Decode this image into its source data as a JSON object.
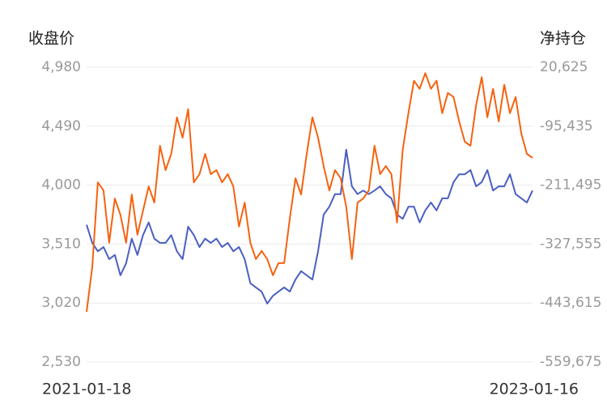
{
  "chart_data": {
    "type": "line",
    "ylabel": "收盘价",
    "y2label": "净持仓",
    "categories": [
      "2021-01-18",
      null,
      null,
      null,
      null,
      null,
      null,
      null,
      null,
      null,
      null,
      null,
      null,
      null,
      null,
      null,
      null,
      null,
      null,
      null,
      null,
      null,
      null,
      null,
      null,
      null,
      null,
      null,
      null,
      null,
      null,
      null,
      null,
      null,
      null,
      null,
      null,
      null,
      null,
      null,
      null,
      null,
      null,
      null,
      null,
      null,
      null,
      null,
      null,
      null,
      null,
      null,
      null,
      null,
      null,
      null,
      null,
      null,
      null,
      null,
      null,
      null,
      null,
      null,
      null,
      null,
      null,
      null,
      null,
      null,
      null,
      null,
      null,
      null,
      null,
      null,
      null,
      null,
      null,
      "2023-01-16"
    ],
    "ylim": [
      2530,
      4980
    ],
    "yticks": [
      {
        "value": 2530,
        "label": "2,530"
      },
      {
        "value": 3020,
        "label": "3,020"
      },
      {
        "value": 3510,
        "label": "3,510"
      },
      {
        "value": 4000,
        "label": "4,000"
      },
      {
        "value": 4490,
        "label": "4,490"
      },
      {
        "value": 4980,
        "label": "4,980"
      }
    ],
    "y2lim": [
      -559675,
      20625
    ],
    "y2ticks": [
      {
        "value": -559675,
        "label": "-559,675"
      },
      {
        "value": -443615,
        "label": "-443,615"
      },
      {
        "value": -327555,
        "label": "-327,555"
      },
      {
        "value": -211495,
        "label": "-211,495"
      },
      {
        "value": -95435,
        "label": "-95,435"
      },
      {
        "value": 20625,
        "label": "20,625"
      }
    ],
    "grid": true,
    "series": [
      {
        "color": "#4a5fc1",
        "values": [
          3670,
          3520,
          3450,
          3485,
          3385,
          3420,
          3250,
          3350,
          3555,
          3420,
          3585,
          3690,
          3555,
          3520,
          3520,
          3585,
          3450,
          3385,
          3655,
          3585,
          3485,
          3555,
          3520,
          3555,
          3485,
          3520,
          3450,
          3485,
          3385,
          3185,
          3150,
          3115,
          3015,
          3080,
          3115,
          3150,
          3115,
          3215,
          3285,
          3250,
          3215,
          3450,
          3755,
          3820,
          3925,
          3925,
          4295,
          3990,
          3925,
          3955,
          3925,
          3955,
          3990,
          3925,
          3890,
          3755,
          3720,
          3820,
          3820,
          3690,
          3790,
          3855,
          3790,
          3890,
          3890,
          4025,
          4090,
          4090,
          4125,
          3990,
          4025,
          4125,
          3955,
          3990,
          3990,
          4090,
          3925,
          3890,
          3855,
          3955
        ]
      },
      {
        "color": "#f5620f",
        "axis": "y2",
        "values": [
          -461000,
          -373000,
          -206000,
          -222000,
          -325000,
          -238000,
          -270000,
          -325000,
          -230000,
          -309000,
          -262000,
          -214000,
          -246000,
          -134000,
          -182000,
          -150000,
          -78000,
          -118000,
          -62000,
          -206000,
          -190000,
          -150000,
          -190000,
          -182000,
          -206000,
          -190000,
          -214000,
          -293000,
          -246000,
          -325000,
          -357000,
          -341000,
          -357000,
          -389000,
          -365000,
          -365000,
          -277000,
          -198000,
          -230000,
          -150000,
          -78000,
          -118000,
          -174000,
          -222000,
          -182000,
          -198000,
          -254000,
          -357000,
          -246000,
          -238000,
          -222000,
          -134000,
          -190000,
          -174000,
          -190000,
          -285000,
          -142000,
          -70000,
          -6000,
          -22000,
          9000,
          -22000,
          -6000,
          -70000,
          -30000,
          -38000,
          -86000,
          -126000,
          -134000,
          -54000,
          1000,
          -78000,
          -22000,
          -86000,
          -14000,
          -70000,
          -38000,
          -110000,
          -150000,
          -158000
        ]
      }
    ]
  }
}
